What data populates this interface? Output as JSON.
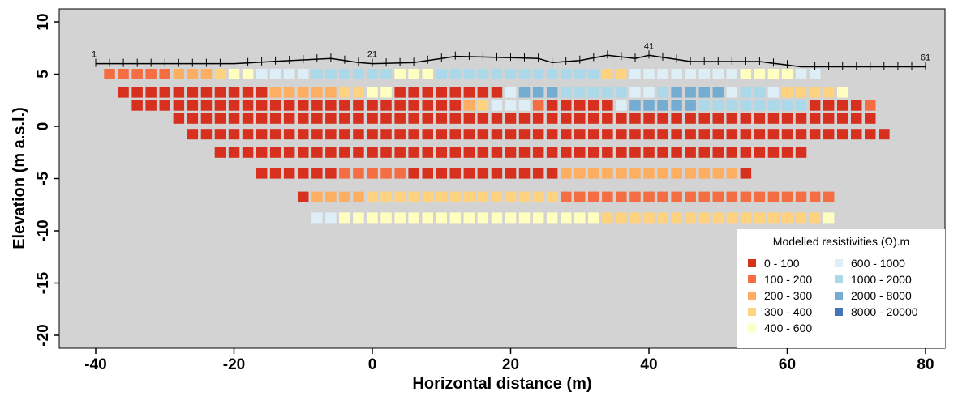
{
  "chart_data": {
    "type": "heatmap",
    "title": "",
    "xlabel": "Horizontal distance (m)",
    "ylabel": "Elevation (m a.s.l.)",
    "xlim": [
      -46,
      82
    ],
    "ylim": [
      -21,
      11
    ],
    "x_ticks": [
      -40,
      -20,
      0,
      20,
      40,
      60,
      80
    ],
    "y_ticks": [
      10,
      5,
      0,
      -5,
      -10,
      -15,
      -20
    ],
    "grid": false,
    "background_color": "#d3d3d3",
    "legend": {
      "title": "Modelled resistivities (Ω).m",
      "placement": "bottom-right",
      "entries": [
        {
          "label": "0 - 100",
          "color": "#d7301f"
        },
        {
          "label": "100 - 200",
          "color": "#f46d43"
        },
        {
          "label": "200 - 300",
          "color": "#fdae61"
        },
        {
          "label": "300 - 400",
          "color": "#fed27f"
        },
        {
          "label": "400 - 600",
          "color": "#ffffbf"
        },
        {
          "label": "600 - 1000",
          "color": "#deeef7"
        },
        {
          "label": "1000 - 2000",
          "color": "#abd9e9"
        },
        {
          "label": "2000 - 8000",
          "color": "#74add1"
        },
        {
          "label": "8000 - 20000",
          "color": "#4575b4"
        }
      ]
    },
    "electrodes": {
      "x_start": -40,
      "spacing": 2,
      "count": 61,
      "labels": [
        {
          "index": 1,
          "text": "1"
        },
        {
          "index": 21,
          "text": "21"
        },
        {
          "index": 41,
          "text": "41"
        },
        {
          "index": 61,
          "text": "61"
        }
      ],
      "surface_elevation": [
        [
          -40,
          6.0
        ],
        [
          -20,
          6.0
        ],
        [
          -6,
          6.5
        ],
        [
          -2,
          6.1
        ],
        [
          0,
          6.0
        ],
        [
          6,
          6.1
        ],
        [
          12,
          6.7
        ],
        [
          24,
          6.5
        ],
        [
          26,
          6.1
        ],
        [
          30,
          6.3
        ],
        [
          34,
          6.8
        ],
        [
          38,
          6.5
        ],
        [
          40,
          6.8
        ],
        [
          46,
          6.2
        ],
        [
          56,
          6.2
        ],
        [
          62,
          5.7
        ],
        [
          80,
          5.7
        ]
      ]
    },
    "model_rows": [
      {
        "elevation": 5.0,
        "x_start": -38,
        "x_step": 2,
        "classes": [
          1,
          1,
          1,
          1,
          1,
          2,
          2,
          2,
          3,
          4,
          4,
          5,
          5,
          5,
          5,
          6,
          6,
          6,
          6,
          6,
          6,
          4,
          4,
          4,
          6,
          6,
          6,
          6,
          6,
          6,
          6,
          6,
          6,
          6,
          6,
          6,
          3,
          3,
          5,
          5,
          5,
          5,
          5,
          5,
          5,
          5,
          4,
          4,
          4,
          4,
          5,
          5
        ]
      },
      {
        "elevation": 3.25,
        "x_start": -36,
        "x_step": 2,
        "classes": [
          0,
          0,
          0,
          0,
          0,
          0,
          0,
          0,
          0,
          0,
          0,
          2,
          2,
          2,
          2,
          2,
          3,
          3,
          4,
          4,
          0,
          0,
          0,
          0,
          0,
          0,
          0,
          0,
          5,
          7,
          7,
          7,
          6,
          6,
          6,
          6,
          6,
          5,
          5,
          6,
          7,
          7,
          7,
          7,
          5,
          6,
          6,
          5,
          3,
          3,
          3,
          3,
          4
        ]
      },
      {
        "elevation": 2.0,
        "x_start": -34,
        "x_step": 2,
        "classes": [
          0,
          0,
          0,
          0,
          0,
          0,
          0,
          0,
          0,
          0,
          0,
          0,
          0,
          0,
          0,
          0,
          0,
          0,
          0,
          0,
          0,
          0,
          0,
          0,
          2,
          3,
          5,
          5,
          5,
          1,
          0,
          0,
          0,
          0,
          0,
          5,
          7,
          7,
          7,
          7,
          7,
          6,
          6,
          6,
          6,
          6,
          6,
          6,
          6,
          0,
          0,
          0,
          0,
          1
        ]
      },
      {
        "elevation": 0.75,
        "x_start": -28,
        "x_step": 2,
        "classes": [
          0,
          0,
          0,
          0,
          0,
          0,
          0,
          0,
          0,
          0,
          0,
          0,
          0,
          0,
          0,
          0,
          0,
          0,
          0,
          0,
          0,
          0,
          0,
          0,
          0,
          0,
          0,
          0,
          0,
          0,
          0,
          0,
          0,
          0,
          0,
          0,
          0,
          0,
          0,
          0,
          0,
          0,
          0,
          0,
          0,
          0,
          0,
          0,
          0,
          0,
          0
        ]
      },
      {
        "elevation": -0.75,
        "x_start": -26,
        "x_step": 2,
        "classes": [
          0,
          0,
          0,
          0,
          0,
          0,
          0,
          0,
          0,
          0,
          0,
          0,
          0,
          0,
          0,
          0,
          0,
          0,
          0,
          0,
          0,
          0,
          0,
          0,
          0,
          0,
          0,
          0,
          0,
          0,
          0,
          0,
          0,
          0,
          0,
          0,
          0,
          0,
          0,
          0,
          0,
          0,
          0,
          0,
          0,
          0,
          0,
          0,
          0,
          0,
          0
        ]
      },
      {
        "elevation": -2.5,
        "x_start": -22,
        "x_step": 2,
        "classes": [
          0,
          0,
          0,
          0,
          0,
          0,
          0,
          0,
          0,
          0,
          0,
          0,
          0,
          0,
          0,
          0,
          0,
          0,
          0,
          0,
          0,
          0,
          0,
          0,
          0,
          0,
          0,
          0,
          0,
          0,
          0,
          0,
          0,
          0,
          0,
          0,
          0,
          0,
          0,
          0,
          0,
          0,
          0
        ]
      },
      {
        "elevation": -4.5,
        "x_start": -16,
        "x_step": 2,
        "classes": [
          0,
          0,
          0,
          0,
          0,
          0,
          1,
          1,
          1,
          1,
          1,
          0,
          0,
          0,
          0,
          0,
          0,
          0,
          0,
          0,
          0,
          0,
          2,
          2,
          2,
          2,
          2,
          2,
          2,
          2,
          2,
          2,
          2,
          2,
          2,
          0
        ]
      },
      {
        "elevation": -6.75,
        "x_start": -10,
        "x_step": 2,
        "classes": [
          0,
          2,
          2,
          2,
          2,
          3,
          3,
          3,
          3,
          3,
          3,
          3,
          3,
          3,
          3,
          3,
          3,
          3,
          3,
          1,
          1,
          1,
          1,
          1,
          1,
          1,
          1,
          1,
          1,
          1,
          1,
          1,
          1,
          1,
          1,
          1,
          1,
          1,
          1
        ]
      },
      {
        "elevation": -8.75,
        "x_start": -8,
        "x_step": 2,
        "classes": [
          5,
          5,
          4,
          4,
          4,
          4,
          4,
          4,
          4,
          4,
          4,
          4,
          4,
          4,
          4,
          4,
          4,
          4,
          4,
          4,
          4,
          3,
          3,
          3,
          3,
          3,
          3,
          3,
          3,
          3,
          3,
          3,
          3,
          3,
          3,
          3,
          3,
          4
        ]
      }
    ]
  }
}
